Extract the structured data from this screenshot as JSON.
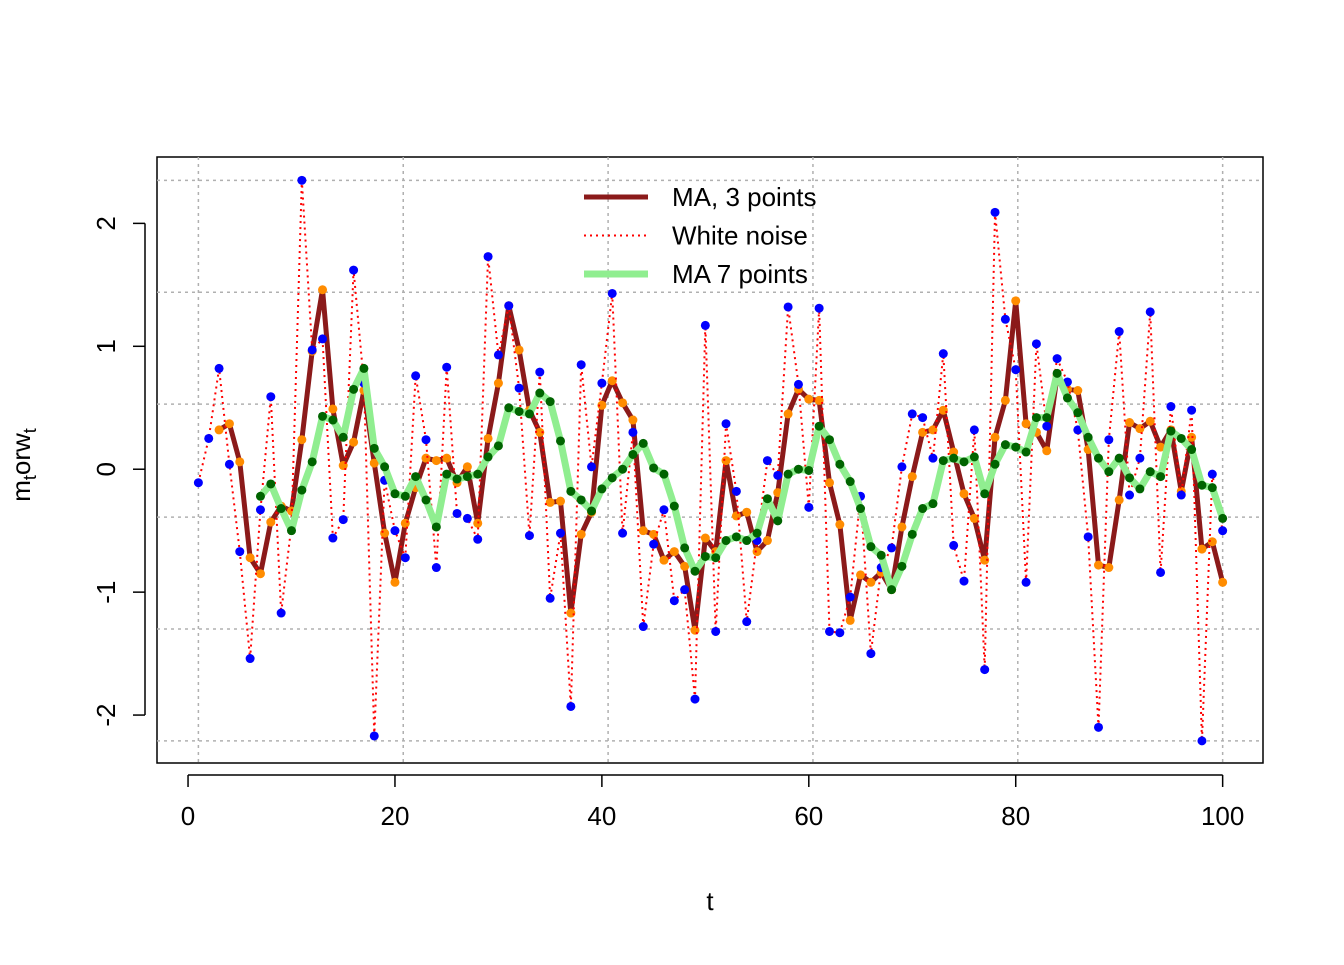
{
  "chart_data": {
    "type": "line",
    "xlabel": "t",
    "ylabel": [
      "m",
      "t",
      "orw",
      "t"
    ],
    "xlim": [
      -3,
      103.9
    ],
    "ylim": [
      -2.39,
      2.54
    ],
    "xticks": [
      0,
      20,
      40,
      60,
      80,
      100
    ],
    "yticks": [
      -2,
      -1,
      0,
      1,
      2
    ],
    "grid": true,
    "xgrid": [
      1,
      20.8,
      40.6,
      60.4,
      80.2,
      100
    ],
    "ygrid": [
      -2.21,
      -1.3,
      -0.39,
      0.53,
      1.44,
      2.35
    ],
    "legend": "top",
    "x": [
      1,
      2,
      3,
      4,
      5,
      6,
      7,
      8,
      9,
      10,
      11,
      12,
      13,
      14,
      15,
      16,
      17,
      18,
      19,
      20,
      21,
      22,
      23,
      24,
      25,
      26,
      27,
      28,
      29,
      30,
      31,
      32,
      33,
      34,
      35,
      36,
      37,
      38,
      39,
      40,
      41,
      42,
      43,
      44,
      45,
      46,
      47,
      48,
      49,
      50,
      51,
      52,
      53,
      54,
      55,
      56,
      57,
      58,
      59,
      60,
      61,
      62,
      63,
      64,
      65,
      66,
      67,
      68,
      69,
      70,
      71,
      72,
      73,
      74,
      75,
      76,
      77,
      78,
      79,
      80,
      81,
      82,
      83,
      84,
      85,
      86,
      87,
      88,
      89,
      90,
      91,
      92,
      93,
      94,
      95,
      96,
      97,
      98,
      99,
      100
    ],
    "series": [
      {
        "name": "MA, 3 points",
        "color": "#8b1a1a",
        "point_color": "#ff8c00",
        "line_width": 5,
        "dash": "solid",
        "values": [
          null,
          null,
          0.32,
          0.37,
          0.06,
          -0.72,
          -0.85,
          -0.43,
          -0.3,
          -0.34,
          0.24,
          0.96,
          1.46,
          0.49,
          0.03,
          0.22,
          0.64,
          0.05,
          -0.52,
          -0.92,
          -0.44,
          -0.15,
          0.09,
          0.07,
          0.09,
          -0.11,
          0.02,
          -0.44,
          0.25,
          0.7,
          1.33,
          0.97,
          0.48,
          0.3,
          -0.27,
          -0.26,
          -1.17,
          -0.53,
          -0.35,
          0.52,
          0.72,
          0.54,
          0.4,
          -0.5,
          -0.53,
          -0.74,
          -0.67,
          -0.79,
          -1.31,
          -0.56,
          -0.67,
          0.07,
          -0.38,
          -0.35,
          -0.67,
          -0.58,
          -0.19,
          0.45,
          0.65,
          0.57,
          0.56,
          -0.11,
          -0.45,
          -1.23,
          -0.86,
          -0.92,
          -0.84,
          -0.98,
          -0.47,
          -0.06,
          0.3,
          0.32,
          0.48,
          0.14,
          -0.2,
          -0.4,
          -0.74,
          0.26,
          0.56,
          1.37,
          0.37,
          0.3,
          0.15,
          0.76,
          0.65,
          0.64,
          0.16,
          -0.78,
          -0.8,
          -0.25,
          0.38,
          0.33,
          0.39,
          0.18,
          0.32,
          -0.18,
          0.26,
          -0.65,
          -0.59,
          -0.92
        ]
      },
      {
        "name": "White noise",
        "color": "#ff0000",
        "point_color": "#0000ff",
        "line_width": 2,
        "dash": "dotted",
        "values": [
          -0.11,
          0.25,
          0.82,
          0.04,
          -0.67,
          -1.54,
          -0.33,
          0.59,
          -1.17,
          -0.45,
          2.35,
          0.97,
          1.06,
          -0.56,
          -0.41,
          1.62,
          0.7,
          -2.17,
          -0.09,
          -0.5,
          -0.72,
          0.76,
          0.24,
          -0.8,
          0.83,
          -0.36,
          -0.4,
          -0.57,
          1.73,
          0.93,
          1.33,
          0.66,
          -0.54,
          0.79,
          -1.05,
          -0.52,
          -1.93,
          0.85,
          0.02,
          0.7,
          1.43,
          -0.52,
          0.3,
          -1.28,
          -0.61,
          -0.33,
          -1.07,
          -0.98,
          -1.87,
          1.17,
          -1.32,
          0.37,
          -0.18,
          -1.24,
          -0.58,
          0.07,
          -0.05,
          1.32,
          0.69,
          -0.31,
          1.31,
          -1.32,
          -1.33,
          -1.04,
          -0.22,
          -1.5,
          -0.8,
          -0.64,
          0.02,
          0.45,
          0.42,
          0.09,
          0.94,
          -0.62,
          -0.91,
          0.32,
          -1.63,
          2.09,
          1.22,
          0.81,
          -0.92,
          1.02,
          0.35,
          0.9,
          0.71,
          0.32,
          -0.55,
          -2.1,
          0.24,
          1.12,
          -0.21,
          0.09,
          1.28,
          -0.84,
          0.51,
          -0.21,
          0.48,
          -2.21,
          -0.04,
          -0.5
        ]
      },
      {
        "name": "MA 7 points",
        "color": "#90ee90",
        "point_color": "#006400",
        "line_width": 7,
        "dash": "solid",
        "values": [
          null,
          null,
          null,
          null,
          null,
          null,
          -0.22,
          -0.12,
          -0.32,
          -0.5,
          -0.17,
          0.06,
          0.43,
          0.4,
          0.26,
          0.65,
          0.82,
          0.17,
          0.02,
          -0.2,
          -0.22,
          -0.06,
          -0.25,
          -0.47,
          -0.04,
          -0.08,
          -0.06,
          -0.04,
          0.1,
          0.19,
          0.5,
          0.47,
          0.45,
          0.62,
          0.55,
          0.23,
          -0.18,
          -0.25,
          -0.34,
          -0.16,
          -0.07,
          0.0,
          0.12,
          0.21,
          0.01,
          -0.04,
          -0.3,
          -0.64,
          -0.83,
          -0.71,
          -0.72,
          -0.58,
          -0.55,
          -0.58,
          -0.52,
          -0.24,
          -0.42,
          -0.04,
          0.0,
          -0.01,
          0.35,
          0.24,
          0.04,
          -0.1,
          -0.32,
          -0.63,
          -0.7,
          -0.98,
          -0.79,
          -0.53,
          -0.32,
          -0.28,
          0.07,
          0.09,
          0.06,
          0.1,
          -0.2,
          0.04,
          0.2,
          0.18,
          0.14,
          0.42,
          0.42,
          0.78,
          0.58,
          0.46,
          0.26,
          0.09,
          -0.02,
          0.09,
          -0.07,
          -0.16,
          -0.02,
          -0.06,
          0.31,
          0.25,
          0.16,
          -0.13,
          -0.15,
          -0.4
        ]
      }
    ]
  }
}
